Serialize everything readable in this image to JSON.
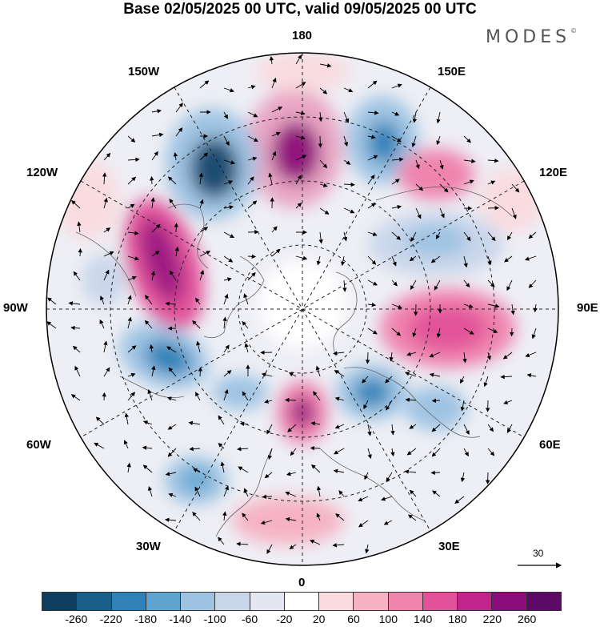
{
  "title": "Base 02/05/2025 00 UTC, valid 09/05/2025 00 UTC",
  "brand": {
    "text": "MODES",
    "mark": "©"
  },
  "longitude_labels": {
    "n180": "180",
    "w150": "150W",
    "e150": "150E",
    "w120": "120W",
    "e120": "120E",
    "w90": "90W",
    "e90": "90E",
    "w60": "60W",
    "e60": "60E",
    "w30": "30W",
    "e30": "30E",
    "s0": "0"
  },
  "reference_vector": {
    "label": "30"
  },
  "colorbar": {
    "colors": [
      "#0e3e5e",
      "#195f8c",
      "#2f82b8",
      "#5fa4d0",
      "#9ec3e2",
      "#c9d6ea",
      "#e4e6f2",
      "#ffffff",
      "#f9dbe0",
      "#f6b2c3",
      "#ef84ad",
      "#e2529a",
      "#c1258c",
      "#8c0d79",
      "#5d0966"
    ],
    "tick_labels": [
      "-260",
      "-220",
      "-180",
      "-140",
      "-100",
      "-60",
      "-20",
      "20",
      "60",
      "100",
      "140",
      "180",
      "220",
      "260"
    ]
  },
  "map": {
    "projection": "north-polar-stereographic",
    "field": "geopotential anomaly",
    "anomalies": [
      {
        "name": "pacific-high-180",
        "value": 240
      },
      {
        "name": "low-165w",
        "value": -240
      },
      {
        "name": "low-160e",
        "value": -180
      },
      {
        "name": "high-125e",
        "value": 140
      },
      {
        "name": "high-110w",
        "value": 220
      },
      {
        "name": "low-100w",
        "value": -100
      },
      {
        "name": "low-70w",
        "value": -180
      },
      {
        "name": "low-55w",
        "value": -100
      },
      {
        "name": "high-north-atlantic",
        "value": 220
      },
      {
        "name": "low-scandinavia",
        "value": -160
      },
      {
        "name": "low-60e",
        "value": -100
      },
      {
        "name": "high-siberia-95e",
        "value": 180
      },
      {
        "name": "low-110e",
        "value": -100
      },
      {
        "name": "low-atlantic-40w",
        "value": -140
      },
      {
        "name": "high-mediterranean",
        "value": 80
      }
    ]
  }
}
